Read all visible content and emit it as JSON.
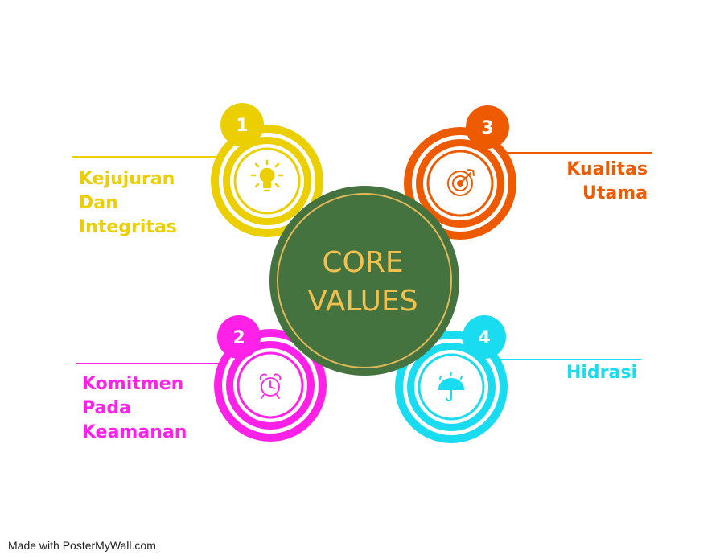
{
  "core": {
    "line1": "CORE",
    "line2": "VALUES",
    "fill_color": "#44733f",
    "ring_color": "#e0b858",
    "text_color": "#f2c04f"
  },
  "values": [
    {
      "number": "1",
      "label_lines": [
        "Kejujuran",
        "Dan",
        "Integritas"
      ],
      "color": "#eccf00",
      "icon": "lightbulb-icon"
    },
    {
      "number": "2",
      "label_lines": [
        "Komitmen",
        "Pada",
        "Keamanan"
      ],
      "color": "#ff21e8",
      "icon": "alarm-clock-icon"
    },
    {
      "number": "3",
      "label_lines": [
        "Kualitas",
        "Utama"
      ],
      "color": "#ee5a00",
      "icon": "target-icon"
    },
    {
      "number": "4",
      "label_lines": [
        "Hidrasi"
      ],
      "color": "#19dcf0",
      "icon": "umbrella-rain-icon"
    }
  ],
  "footer": {
    "watermark": "Made with PosterMyWall.com"
  }
}
